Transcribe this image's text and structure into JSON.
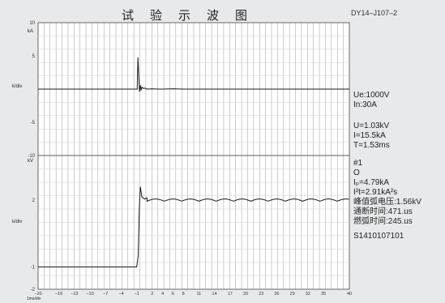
{
  "title_chars": [
    "试",
    "验",
    "示",
    "波",
    "图"
  ],
  "doc_code": "DY14–J107–2",
  "info_top": {
    "lines": [
      "Ue:1000V",
      "In:30A"
    ]
  },
  "info_mid": {
    "lines": [
      "U=1.03kV",
      "I=15.5kA",
      "T=1.53ms"
    ]
  },
  "info_bottom": {
    "channel": "#1",
    "phase": "O",
    "ip": "Iₚ=4.79kA",
    "i2t": "I²t=2.91kA²s",
    "arc_voltage": "峰值弧电压:1.56kV",
    "break_time": "通断时间:471.us",
    "arc_time": "燃弧时间:245.us",
    "serial": "S1410107101"
  },
  "chart_data": [
    {
      "type": "line",
      "xlabel": "1ms/div",
      "ylabel": "k/div",
      "x_ticks": [
        -20,
        -16,
        -13,
        -10,
        -7,
        -4,
        -1,
        2,
        4,
        6,
        8,
        11,
        14,
        17,
        20,
        23,
        26,
        29,
        32,
        35,
        40
      ],
      "xlim": [
        -20,
        40
      ],
      "y_unit": "kA",
      "y_ticks": [
        10,
        5,
        -5,
        -10
      ],
      "ylim": [
        -10,
        10
      ],
      "grid": true,
      "series": [
        {
          "x": [
            -20,
            -0.9,
            -0.75,
            -0.6,
            -0.45,
            -0.3,
            -0.15,
            0.0,
            0.3,
            0.6,
            1.0,
            2.0,
            3.0,
            4.0,
            6.0,
            8.0,
            9.0,
            40
          ],
          "y": [
            0,
            0,
            4.79,
            2.0,
            -0.4,
            0.6,
            -0.2,
            0.3,
            0.1,
            0.15,
            0.0,
            0.05,
            0.0,
            0.0,
            0.05,
            0.0,
            0.0,
            0
          ]
        }
      ]
    },
    {
      "type": "line",
      "xlabel": "1ms/div",
      "ylabel": "k/div",
      "x_ticks": [
        -20,
        -16,
        -13,
        -10,
        -7,
        -4,
        -1,
        2,
        4,
        6,
        8,
        11,
        14,
        17,
        20,
        23,
        26,
        29,
        32,
        35,
        40
      ],
      "xlim": [
        -20,
        40
      ],
      "y_unit": "kV",
      "y_ticks": [
        2,
        -1,
        -2
      ],
      "ylim": [
        -2,
        4
      ],
      "grid": true,
      "series": [
        {
          "x": [
            -20,
            -1.0,
            -0.7,
            -0.5,
            -0.3,
            0.0,
            0.5,
            1.0,
            40
          ],
          "y": [
            -1.0,
            -1.0,
            -0.5,
            1.56,
            2.6,
            2.15,
            2.05,
            2.1,
            2.05
          ],
          "ripple_amplitude": 0.1,
          "ripple_period": 3.333
        }
      ]
    }
  ]
}
